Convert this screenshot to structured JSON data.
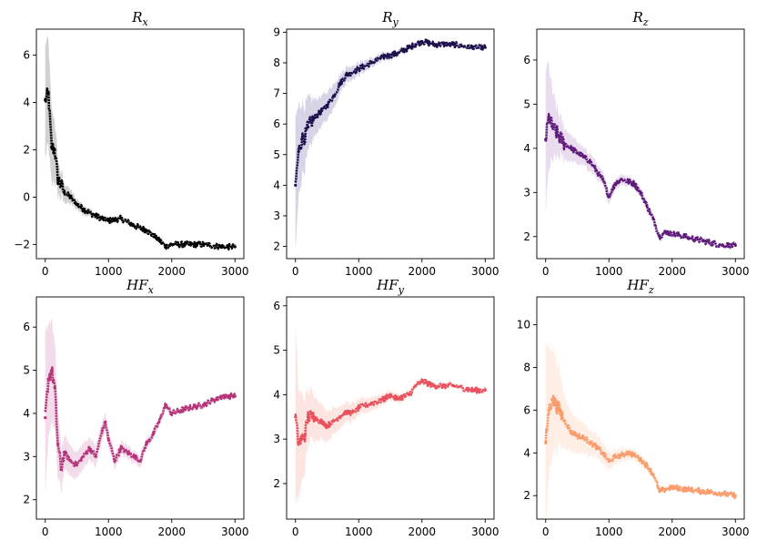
{
  "figure": {
    "layout": "2x3 grid of line plots with shaded uncertainty bands"
  },
  "chart_data": [
    {
      "type": "line",
      "title_base": "R",
      "title_sub": "x",
      "xlim": [
        -140,
        3140
      ],
      "ylim": [
        -2.6,
        7.1
      ],
      "xticks": [
        0,
        1000,
        2000,
        3000
      ],
      "yticks": [
        -2,
        0,
        2,
        4,
        6
      ],
      "line_color": "#000000",
      "band_color": "#000000",
      "x": [
        0,
        50,
        100,
        150,
        200,
        300,
        400,
        500,
        600,
        800,
        1000,
        1200,
        1400,
        1600,
        1800,
        1900,
        2000,
        2200,
        2500,
        2800,
        3000
      ],
      "y": [
        4.1,
        4.4,
        2.1,
        2.0,
        0.8,
        0.2,
        0.0,
        -0.3,
        -0.5,
        -0.8,
        -1.0,
        -0.9,
        -1.2,
        -1.4,
        -1.8,
        -2.1,
        -2.0,
        -2.0,
        -2.0,
        -2.1,
        -2.1
      ],
      "band": [
        2.4,
        2.2,
        1.6,
        1.3,
        0.7,
        0.4,
        0.3,
        0.2,
        0.2,
        0.1,
        0.1,
        0.1,
        0.08,
        0.08,
        0.08,
        0.08,
        0.06,
        0.05,
        0.05,
        0.05,
        0.05
      ]
    },
    {
      "type": "line",
      "title_base": "R",
      "title_sub": "y",
      "xlim": [
        -140,
        3140
      ],
      "ylim": [
        1.6,
        9.1
      ],
      "xticks": [
        0,
        1000,
        2000,
        3000
      ],
      "yticks": [
        2,
        3,
        4,
        5,
        6,
        7,
        8,
        9
      ],
      "line_color": "#1e0f4a",
      "band_color": "#b6b1d6",
      "x": [
        0,
        50,
        100,
        150,
        200,
        300,
        400,
        500,
        600,
        700,
        800,
        1000,
        1200,
        1400,
        1600,
        1800,
        1900,
        2000,
        2200,
        2500,
        2800,
        3000
      ],
      "y": [
        4.0,
        5.1,
        5.5,
        5.6,
        5.9,
        6.2,
        6.4,
        6.6,
        6.9,
        7.3,
        7.6,
        7.8,
        8.0,
        8.2,
        8.3,
        8.5,
        8.6,
        8.7,
        8.6,
        8.6,
        8.5,
        8.5
      ],
      "band": [
        2.2,
        1.5,
        1.2,
        1.0,
        0.9,
        0.6,
        0.5,
        0.45,
        0.4,
        0.3,
        0.25,
        0.2,
        0.15,
        0.12,
        0.1,
        0.08,
        0.07,
        0.06,
        0.05,
        0.05,
        0.05,
        0.05
      ]
    },
    {
      "type": "line",
      "title_base": "R",
      "title_sub": "z",
      "xlim": [
        -140,
        3140
      ],
      "ylim": [
        1.5,
        6.7
      ],
      "xticks": [
        0,
        1000,
        2000,
        3000
      ],
      "yticks": [
        2,
        3,
        4,
        5,
        6
      ],
      "line_color": "#5e1b7a",
      "band_color": "#d7bfe2",
      "x": [
        0,
        50,
        100,
        200,
        300,
        400,
        500,
        600,
        700,
        800,
        900,
        1000,
        1100,
        1200,
        1400,
        1500,
        1600,
        1700,
        1800,
        1900,
        2200,
        2500,
        2800,
        3000
      ],
      "y": [
        4.2,
        4.7,
        4.5,
        4.3,
        4.1,
        4.0,
        3.9,
        3.8,
        3.7,
        3.5,
        3.3,
        2.9,
        3.2,
        3.3,
        3.2,
        3.0,
        2.7,
        2.4,
        2.0,
        2.1,
        2.0,
        1.9,
        1.8,
        1.8
      ],
      "band": [
        1.6,
        1.2,
        0.8,
        0.5,
        0.35,
        0.3,
        0.25,
        0.2,
        0.2,
        0.18,
        0.15,
        0.15,
        0.12,
        0.12,
        0.1,
        0.1,
        0.1,
        0.08,
        0.08,
        0.06,
        0.05,
        0.05,
        0.05,
        0.05
      ]
    },
    {
      "type": "line",
      "title_base": "HF",
      "title_sub": "x",
      "xlim": [
        -140,
        3140
      ],
      "ylim": [
        1.55,
        6.7
      ],
      "xticks": [
        0,
        1000,
        2000,
        3000
      ],
      "yticks": [
        2,
        3,
        4,
        5,
        6
      ],
      "line_color": "#b53379",
      "band_color": "#e8bfd8",
      "x": [
        0,
        50,
        100,
        150,
        200,
        250,
        300,
        400,
        500,
        600,
        700,
        800,
        900,
        950,
        1000,
        1100,
        1200,
        1300,
        1400,
        1500,
        1600,
        1700,
        1800,
        1900,
        2000,
        2200,
        2500,
        2800,
        3000
      ],
      "y": [
        3.9,
        4.8,
        5.0,
        4.6,
        3.3,
        2.7,
        3.1,
        2.9,
        2.8,
        3.0,
        3.2,
        3.0,
        3.6,
        3.8,
        3.4,
        2.9,
        3.2,
        3.1,
        3.0,
        2.9,
        3.3,
        3.5,
        3.8,
        4.2,
        4.0,
        4.1,
        4.2,
        4.4,
        4.4
      ],
      "band": [
        1.9,
        1.3,
        1.2,
        1.0,
        0.8,
        0.5,
        0.4,
        0.35,
        0.3,
        0.3,
        0.25,
        0.25,
        0.22,
        0.2,
        0.2,
        0.18,
        0.16,
        0.15,
        0.14,
        0.13,
        0.12,
        0.1,
        0.1,
        0.08,
        0.07,
        0.06,
        0.05,
        0.05,
        0.05
      ]
    },
    {
      "type": "line",
      "title_base": "HF",
      "title_sub": "y",
      "xlim": [
        -140,
        3140
      ],
      "ylim": [
        1.2,
        6.2
      ],
      "xticks": [
        0,
        1000,
        2000,
        3000
      ],
      "yticks": [
        2,
        3,
        4,
        5,
        6
      ],
      "line_color": "#e8505e",
      "band_color": "#f9cfc9",
      "x": [
        0,
        50,
        100,
        150,
        200,
        300,
        400,
        500,
        600,
        700,
        800,
        900,
        1000,
        1200,
        1400,
        1500,
        1600,
        1800,
        1900,
        2000,
        2200,
        2500,
        2800,
        3000
      ],
      "y": [
        3.5,
        2.9,
        3.0,
        3.1,
        3.5,
        3.5,
        3.4,
        3.3,
        3.4,
        3.5,
        3.6,
        3.6,
        3.7,
        3.8,
        3.9,
        4.0,
        3.9,
        4.0,
        4.2,
        4.3,
        4.2,
        4.2,
        4.1,
        4.1
      ],
      "band": [
        2.0,
        1.2,
        1.0,
        0.8,
        0.6,
        0.5,
        0.4,
        0.35,
        0.3,
        0.25,
        0.22,
        0.2,
        0.18,
        0.15,
        0.12,
        0.1,
        0.1,
        0.08,
        0.07,
        0.06,
        0.05,
        0.05,
        0.05,
        0.05
      ]
    },
    {
      "type": "line",
      "title_base": "HF",
      "title_sub": "z",
      "xlim": [
        -140,
        3140
      ],
      "ylim": [
        0.9,
        11.3
      ],
      "xticks": [
        0,
        1000,
        2000,
        3000
      ],
      "yticks": [
        2,
        4,
        6,
        8,
        10
      ],
      "line_color": "#f99b6b",
      "band_color": "#fde0d0",
      "x": [
        0,
        50,
        100,
        150,
        200,
        300,
        400,
        500,
        600,
        700,
        800,
        900,
        1000,
        1100,
        1200,
        1300,
        1400,
        1500,
        1600,
        1700,
        1800,
        1900,
        2000,
        2200,
        2500,
        2800,
        3000
      ],
      "y": [
        4.5,
        6.0,
        6.5,
        6.3,
        6.1,
        5.5,
        5.0,
        4.8,
        4.7,
        4.5,
        4.3,
        4.0,
        3.6,
        3.8,
        3.9,
        4.0,
        3.9,
        3.7,
        3.4,
        3.0,
        2.2,
        2.3,
        2.4,
        2.3,
        2.2,
        2.1,
        2.0
      ],
      "band": [
        4.5,
        3.0,
        2.5,
        2.2,
        1.9,
        1.2,
        0.9,
        0.8,
        0.7,
        0.6,
        0.55,
        0.5,
        0.4,
        0.35,
        0.3,
        0.28,
        0.25,
        0.22,
        0.2,
        0.18,
        0.15,
        0.14,
        0.12,
        0.1,
        0.08,
        0.06,
        0.05
      ]
    }
  ]
}
